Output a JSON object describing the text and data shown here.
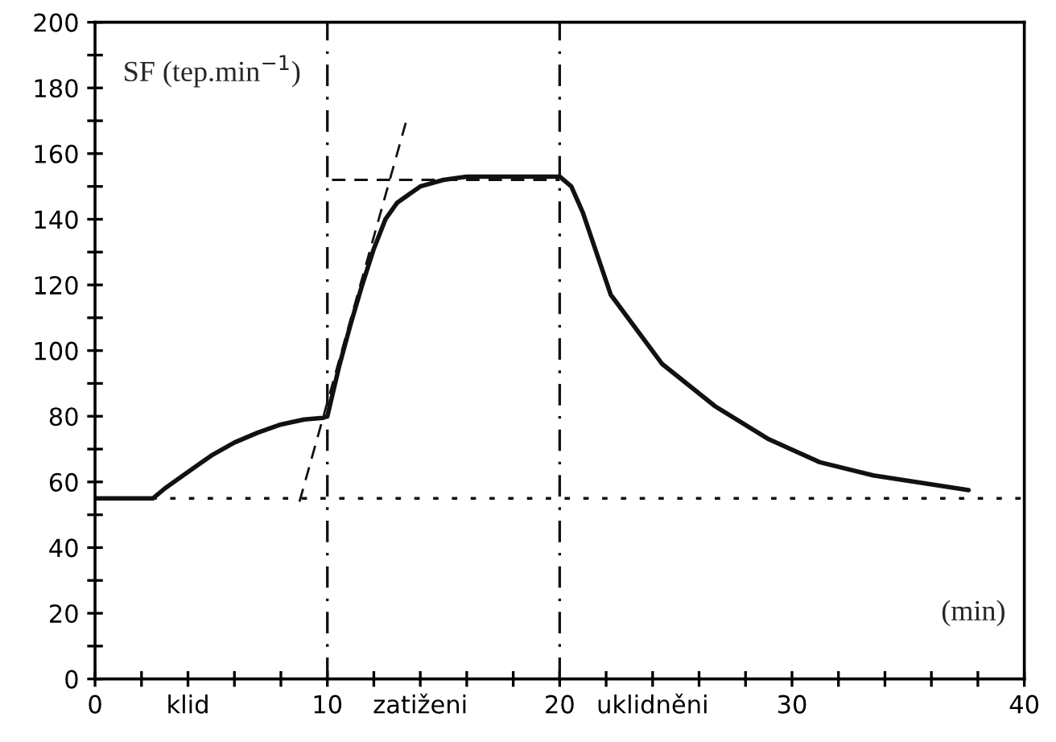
{
  "chart_data": {
    "type": "line",
    "annotations": [
      "SF (tep.min$^{−1}$)",
      "(min)"
    ],
    "series": [
      {
        "color": "#111111",
        "line_style": "solid",
        "x": [
          0,
          2.5,
          3,
          4,
          5,
          6,
          7,
          8,
          9,
          9.8,
          10,
          10.5,
          11,
          11.5,
          12,
          12.5,
          13,
          14,
          15,
          16,
          20,
          20.5,
          21,
          22.2,
          24.4,
          26.7,
          29,
          31.2,
          33.5,
          37.6
        ],
        "values": [
          55,
          55,
          58,
          63,
          68,
          72,
          75,
          77.5,
          79,
          79.5,
          80,
          95,
          108,
          120,
          131,
          140,
          145,
          150,
          152,
          153,
          153,
          150,
          142,
          117,
          96,
          83,
          73,
          66,
          62,
          57.5
        ]
      },
      {
        "color": "#111111",
        "line_style": "dashed",
        "x": [
          10.2,
          20
        ],
        "values": [
          152,
          152
        ]
      },
      {
        "color": "#111111",
        "line_style": "dashed",
        "x": [
          8.8,
          13.4
        ],
        "values": [
          54,
          170
        ]
      }
    ],
    "ref_lines": [
      {
        "axis": "y",
        "value": 55,
        "line_style": "dotted",
        "color": "#111111"
      },
      {
        "axis": "x",
        "value": 10,
        "line_style": "dashdot",
        "color": "#111111"
      },
      {
        "axis": "x",
        "value": 20,
        "line_style": "dashdot",
        "color": "#111111"
      }
    ],
    "xlim": [
      0,
      40
    ],
    "xticks": [
      0,
      {
        "value": 2,
        "label": null
      },
      {
        "value": 4,
        "label": "klid"
      },
      {
        "value": 6,
        "label": null
      },
      {
        "value": 8,
        "label": null
      },
      10,
      {
        "value": 12,
        "label": null
      },
      {
        "value": 14,
        "label": "zatiženi"
      },
      {
        "value": 16,
        "label": null
      },
      {
        "value": 18,
        "label": null
      },
      20,
      {
        "value": 22,
        "label": null
      },
      {
        "value": 24,
        "label": "uklidněni"
      },
      {
        "value": 26,
        "label": null
      },
      {
        "value": 28,
        "label": null
      },
      30,
      {
        "value": 32,
        "label": null
      },
      {
        "value": 34,
        "label": null
      },
      {
        "value": 36,
        "label": null
      },
      {
        "value": 38,
        "label": null
      },
      40
    ],
    "ylim": [
      0,
      200
    ],
    "yticks": [
      0,
      {
        "value": 10,
        "label": null
      },
      20,
      {
        "value": 30,
        "label": null
      },
      40,
      {
        "value": 50,
        "label": null
      },
      60,
      {
        "value": 70,
        "label": null
      },
      80,
      {
        "value": 90,
        "label": null
      },
      100,
      {
        "value": 110,
        "label": null
      },
      120,
      {
        "value": 130,
        "label": null
      },
      140,
      {
        "value": 150,
        "label": null
      },
      160,
      {
        "value": 170,
        "label": null
      },
      180,
      {
        "value": 190,
        "label": null
      },
      200
    ],
    "grid": false,
    "legend": false,
    "marker": "none"
  }
}
